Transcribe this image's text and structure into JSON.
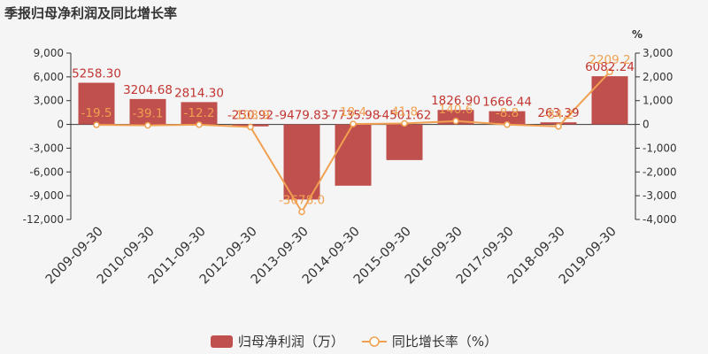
{
  "title": "季报归母净利润及同比增长率",
  "chart_data": {
    "type": "bar",
    "categories": [
      "2009-09-30",
      "2010-09-30",
      "2011-09-30",
      "2012-09-30",
      "2013-09-30",
      "2014-09-30",
      "2015-09-30",
      "2016-09-30",
      "2017-09-30",
      "2018-09-30",
      "2019-09-30"
    ],
    "series": [
      {
        "name": "归母净利润（万）",
        "type": "bar",
        "axis": "left",
        "values": [
          5258.3,
          3204.68,
          2814.3,
          -250.92,
          -9479.83,
          -7735.98,
          -4501.62,
          1826.9,
          1666.44,
          263.39,
          6082.24
        ],
        "labels": [
          "5258.30",
          "3204.68",
          "2814.30",
          "-250.92",
          "-9479.83",
          "-7735.98",
          "-4501.62",
          "1826.90",
          "1666.44",
          "263.39",
          "6082.24"
        ],
        "color": "#c0504d"
      },
      {
        "name": "同比增长率（%）",
        "type": "line",
        "axis": "right",
        "values": [
          -19.5,
          -39.1,
          -12.2,
          -108.9,
          -3678.0,
          18.4,
          41.8,
          140.6,
          -8.8,
          -84.2,
          2209.2
        ],
        "labels": [
          "-19.5",
          "-39.1",
          "-12.2",
          "-108.9",
          "-3678.0",
          "18.4",
          "41.8",
          "140.6",
          "-8.8",
          "-84.2",
          "2209.2"
        ],
        "color": "#f0a050"
      }
    ],
    "y_left": {
      "range": [
        -12000,
        9000
      ],
      "ticks": [
        9000,
        6000,
        3000,
        0,
        -3000,
        -6000,
        -9000,
        -12000
      ],
      "tick_labels": [
        "9,000",
        "6,000",
        "3,000",
        "0",
        "-3,000",
        "-6,000",
        "-9,000",
        "-12,000"
      ]
    },
    "y_right": {
      "unit": "%",
      "range": [
        -4000,
        3000
      ],
      "ticks": [
        3000,
        2000,
        1000,
        0,
        -1000,
        -2000,
        -3000,
        -4000
      ],
      "tick_labels": [
        "3,000",
        "2,000",
        "1,000",
        "0",
        "-1,000",
        "-2,000",
        "-3,000",
        "-4,000"
      ]
    },
    "grid": false,
    "legend": "bottom-center"
  },
  "legend": {
    "bar_label": "归母净利润（万）",
    "line_label": "同比增长率（%）"
  }
}
